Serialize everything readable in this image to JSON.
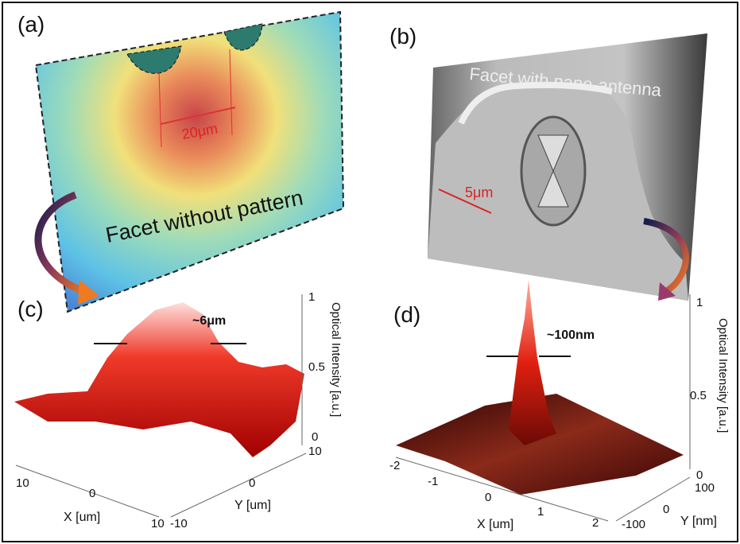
{
  "panels": [
    {
      "label": "(a)",
      "caption": "Facet without pattern",
      "scale": "20μm"
    },
    {
      "label": "(b)",
      "caption": "Facet with nano-antenna",
      "scale": "5μm"
    },
    {
      "label": "(c)",
      "annotation": "~6μm",
      "z_axis_label": "Optical Intensity  [a.u.]",
      "z_ticks": [
        "1",
        "0.5",
        "0"
      ],
      "x_axis_label": "X [um]",
      "x_ticks": [
        "10",
        "0",
        "10"
      ],
      "y_axis_label": "Y [um]",
      "y_ticks": [
        "10",
        "0",
        "-10"
      ]
    },
    {
      "label": "(d)",
      "annotation": "~100nm",
      "z_axis_label": "Optical Intensity  [a.u.]",
      "z_ticks": [
        "1",
        "0.5",
        "0"
      ],
      "x_axis_label": "X [um]",
      "x_ticks": [
        "-2",
        "-1",
        "0",
        "1",
        "2"
      ],
      "y_axis_label": "Y [nm]",
      "y_ticks": [
        "100",
        "0",
        "-100"
      ]
    }
  ]
}
